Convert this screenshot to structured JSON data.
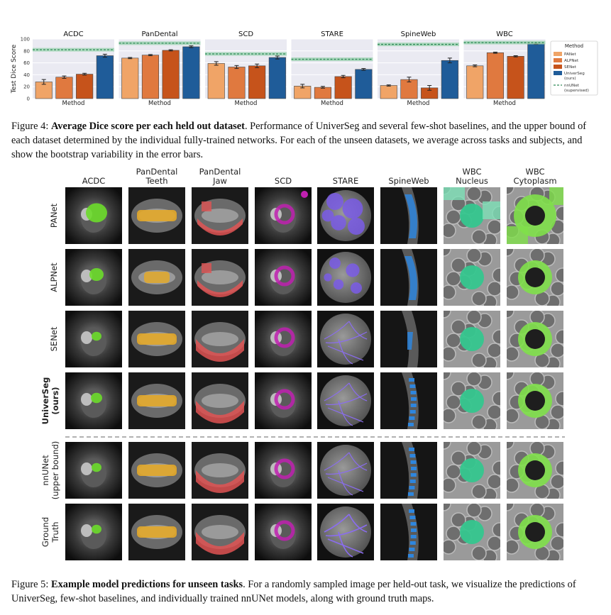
{
  "figure4": {
    "caption_label": "Figure 4:",
    "caption_bold": "Average Dice score per each held out dataset",
    "caption_text": ". Performance of UniverSeg and several few-shot baselines, and the upper bound of each dataset determined by the individual fully-trained networks. For each of the unseen datasets, we average across tasks and subjects, and show the bootstrap variability in the error bars."
  },
  "chart_data": {
    "type": "bar",
    "ylabel": "Test Dice Score",
    "xlabel": "Method",
    "ylim": [
      0,
      100
    ],
    "yticks": [
      0,
      20,
      40,
      60,
      80,
      100
    ],
    "grid": true,
    "legend_placement": "right",
    "legend_title": "Method",
    "colors": {
      "PANet": "#f0a467",
      "ALPNet": "#e0793f",
      "SENet": "#c6531b",
      "UniverSeg": "#1f5c99",
      "nnUNet": "#2e8b57"
    },
    "series_names": [
      "PANet",
      "ALPNet",
      "SENet",
      "UniverSeg\n(ours)"
    ],
    "reference_name": "nnUNet\n(supervised)",
    "panels": [
      {
        "title": "ACDC",
        "values": [
          28,
          36,
          41,
          72
        ],
        "errors": [
          4,
          2,
          1.5,
          2.5
        ],
        "nnunet": 82
      },
      {
        "title": "PanDental",
        "values": [
          68,
          73,
          81,
          87
        ],
        "errors": [
          1,
          1,
          1,
          1.5
        ],
        "nnunet": 93
      },
      {
        "title": "SCD",
        "values": [
          59,
          53,
          55,
          69
        ],
        "errors": [
          3,
          2.5,
          3,
          2.5
        ],
        "nnunet": 75
      },
      {
        "title": "STARE",
        "values": [
          21,
          19,
          37,
          49
        ],
        "errors": [
          3,
          1.5,
          2,
          1.5
        ],
        "nnunet": 66
      },
      {
        "title": "SpineWeb",
        "values": [
          22,
          32,
          18,
          64
        ],
        "errors": [
          1,
          4,
          4,
          4
        ],
        "nnunet": 91
      },
      {
        "title": "WBC",
        "values": [
          55,
          77,
          71,
          92
        ],
        "errors": [
          1.5,
          1,
          1,
          1
        ],
        "nnunet": 94
      }
    ]
  },
  "figure5": {
    "caption_label": "Figure 5:",
    "caption_bold": "Example model predictions for unseen tasks",
    "caption_text": ". For a randomly sampled image per held-out task, we visualize the predictions of UniverSeg, few-shot baselines, and individually trained nnUNet models, along with ground truth maps.",
    "columns": [
      [
        "ACDC"
      ],
      [
        "PanDental",
        "Teeth"
      ],
      [
        "PanDental",
        "Jaw"
      ],
      [
        "SCD"
      ],
      [
        "STARE"
      ],
      [
        "SpineWeb"
      ],
      [
        "WBC",
        "Nucleus"
      ],
      [
        "WBC",
        "Cytoplasm"
      ]
    ],
    "rows": [
      {
        "lines": [
          "PANet"
        ],
        "bold": false
      },
      {
        "lines": [
          "ALPNet"
        ],
        "bold": false
      },
      {
        "lines": [
          "SENet"
        ],
        "bold": false
      },
      {
        "lines": [
          "UniverSeg",
          "(ours)"
        ],
        "bold": true
      },
      {
        "lines": [
          "nnUNet",
          "(upper bound)"
        ],
        "bold": false
      },
      {
        "lines": [
          "Ground",
          "Truth"
        ],
        "bold": false
      }
    ]
  }
}
